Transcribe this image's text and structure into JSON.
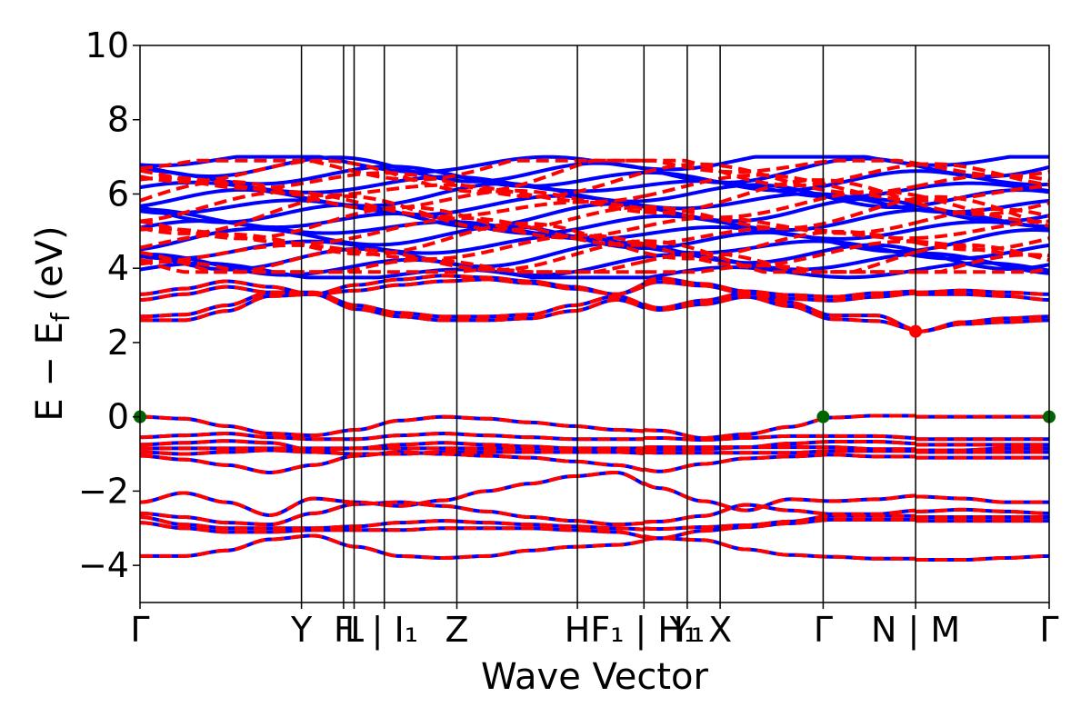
{
  "chart_data": {
    "type": "line",
    "title": "",
    "xlabel": "Wave Vector",
    "ylabel": "E − E_f (eV)",
    "ylabel_main": "E − E",
    "ylabel_sub": "f",
    "ylabel_unit": " (eV)",
    "ylim": [
      -5,
      10
    ],
    "yticks": [
      10,
      8,
      6,
      4,
      2,
      0,
      -2,
      -4
    ],
    "ytick_labels": [
      "10",
      "8",
      "6",
      "4",
      "2",
      "0",
      "−2",
      "−4"
    ],
    "xlim": [
      0,
      100
    ],
    "kpoints": [
      {
        "x": 0.0,
        "label": "Γ",
        "gap_after": false
      },
      {
        "x": 17.76,
        "label": "Y",
        "gap_after": false
      },
      {
        "x": 22.39,
        "label": "F",
        "gap_after": false
      },
      {
        "x": 23.55,
        "label": "L",
        "gap_after": false
      },
      {
        "x": 26.87,
        "label": "I | I₁",
        "gap_after": false
      },
      {
        "x": 34.85,
        "label": "Z",
        "gap_after": false
      },
      {
        "x": 48.11,
        "label": "H",
        "gap_after": false
      },
      {
        "x": 55.43,
        "label": "F₁ | H₁",
        "gap_after": true
      },
      {
        "x": 60.19,
        "label": "Y₁",
        "gap_after": false
      },
      {
        "x": 63.81,
        "label": "X",
        "gap_after": false
      },
      {
        "x": 75.14,
        "label": "Γ",
        "gap_after": false
      },
      {
        "x": 85.31,
        "label": "N | M",
        "gap_after": true
      },
      {
        "x": 100.0,
        "label": "Γ",
        "gap_after": false
      }
    ],
    "series": [
      {
        "color": "#0000ff",
        "dash": "solid"
      },
      {
        "color": "#ff0000",
        "dash": "dashed"
      }
    ],
    "valence_bands": [
      [
        0.0,
        -0.05,
        -0.25,
        -0.45,
        -0.5,
        -0.35,
        -0.1,
        0.0,
        -0.05,
        -0.15,
        -0.25,
        -0.35,
        -0.4,
        -0.6,
        -0.5,
        -0.3,
        -0.05,
        0.0,
        0.0,
        0.0,
        0.0,
        0.0
      ],
      [
        -0.55,
        -0.5,
        -0.45,
        -0.55,
        -0.6,
        -0.6,
        -0.5,
        -0.45,
        -0.5,
        -0.55,
        -0.6,
        -0.6,
        -0.6,
        -0.65,
        -0.6,
        -0.55,
        -0.55,
        -0.55,
        -0.6,
        -0.6,
        -0.6,
        -0.6
      ],
      [
        -0.75,
        -0.7,
        -0.65,
        -0.7,
        -0.9,
        -0.85,
        -0.75,
        -0.7,
        -0.75,
        -0.8,
        -0.85,
        -0.9,
        -0.9,
        -0.9,
        -0.85,
        -0.75,
        -0.7,
        -0.7,
        -0.75,
        -0.75,
        -0.75,
        -0.75
      ],
      [
        -0.85,
        -0.85,
        -0.85,
        -0.85,
        -0.85,
        -0.85,
        -0.85,
        -0.85,
        -0.85,
        -0.85,
        -0.85,
        -0.85,
        -0.85,
        -0.85,
        -0.85,
        -0.85,
        -0.85,
        -0.9,
        -0.9,
        -0.9,
        -0.85,
        -0.85
      ],
      [
        -0.95,
        -1.0,
        -0.95,
        -0.9,
        -0.95,
        -1.0,
        -1.0,
        -0.95,
        -0.95,
        -0.95,
        -0.95,
        -0.95,
        -1.0,
        -1.0,
        -1.0,
        -1.0,
        -0.95,
        -0.95,
        -0.95,
        -0.95,
        -0.95,
        -0.95
      ],
      [
        -1.05,
        -1.15,
        -1.3,
        -1.5,
        -1.3,
        -1.05,
        -0.95,
        -1.0,
        -1.05,
        -1.1,
        -1.2,
        -1.3,
        -1.5,
        -1.3,
        -1.15,
        -1.1,
        -1.05,
        -1.1,
        -1.1,
        -1.1,
        -1.1,
        -1.1
      ],
      [
        -2.3,
        -2.05,
        -2.3,
        -2.65,
        -2.2,
        -2.3,
        -2.4,
        -2.25,
        -2.0,
        -1.8,
        -1.6,
        -1.5,
        -1.95,
        -2.3,
        -2.55,
        -2.25,
        -2.3,
        -2.25,
        -2.15,
        -2.2,
        -2.3,
        -2.3
      ],
      [
        -2.6,
        -2.7,
        -2.85,
        -2.9,
        -2.6,
        -2.35,
        -2.3,
        -2.4,
        -2.55,
        -2.7,
        -2.8,
        -2.9,
        -2.85,
        -2.7,
        -2.4,
        -2.55,
        -2.65,
        -2.65,
        -2.55,
        -2.5,
        -2.55,
        -2.6
      ],
      [
        -2.7,
        -2.9,
        -3.0,
        -3.0,
        -3.0,
        -2.95,
        -2.85,
        -2.8,
        -2.85,
        -2.9,
        -2.95,
        -3.0,
        -3.05,
        -3.0,
        -2.95,
        -2.85,
        -2.7,
        -2.7,
        -2.7,
        -2.7,
        -2.7,
        -2.7
      ],
      [
        -2.85,
        -3.0,
        -3.1,
        -3.1,
        -3.05,
        -3.05,
        -3.05,
        -3.0,
        -3.0,
        -3.0,
        -3.05,
        -3.1,
        -3.3,
        -3.1,
        -3.0,
        -2.9,
        -2.8,
        -2.8,
        -2.8,
        -2.8,
        -2.8,
        -2.8
      ],
      [
        -3.75,
        -3.75,
        -3.6,
        -3.3,
        -3.2,
        -3.5,
        -3.75,
        -3.8,
        -3.75,
        -3.6,
        -3.5,
        -3.45,
        -3.3,
        -3.35,
        -3.6,
        -3.75,
        -3.8,
        -3.85,
        -3.85,
        -3.85,
        -3.8,
        -3.75
      ]
    ],
    "conduction_bands": [
      [
        2.6,
        2.6,
        2.85,
        3.25,
        3.3,
        2.9,
        2.7,
        2.6,
        2.6,
        2.65,
        2.85,
        3.15,
        2.85,
        3.0,
        3.2,
        2.95,
        2.6,
        2.55,
        2.3,
        2.5,
        2.55,
        2.6
      ],
      [
        2.7,
        2.75,
        3.0,
        3.35,
        3.35,
        3.0,
        2.8,
        2.7,
        2.7,
        2.75,
        3.0,
        3.25,
        2.9,
        3.1,
        3.3,
        3.05,
        2.7,
        2.7,
        2.3,
        2.55,
        2.65,
        2.7
      ],
      [
        3.15,
        3.3,
        3.5,
        3.35,
        3.3,
        3.4,
        3.55,
        3.65,
        3.7,
        3.6,
        3.45,
        3.3,
        3.6,
        3.5,
        3.3,
        3.15,
        3.1,
        3.2,
        3.3,
        3.3,
        3.25,
        3.15
      ],
      [
        3.3,
        3.45,
        3.65,
        3.5,
        3.3,
        3.55,
        3.7,
        3.8,
        3.75,
        3.65,
        3.5,
        3.3,
        3.7,
        3.55,
        3.35,
        3.25,
        3.2,
        3.3,
        3.35,
        3.4,
        3.35,
        3.3
      ]
    ],
    "upper_manifold": {
      "y_min": 3.75,
      "y_max": 7.0,
      "bands": 14
    },
    "markers": [
      {
        "x": 0.0,
        "y": 0.0,
        "color": "#006400"
      },
      {
        "x": 75.14,
        "y": 0.0,
        "color": "#006400"
      },
      {
        "x": 100.0,
        "y": 0.0,
        "color": "#006400"
      },
      {
        "x": 85.31,
        "y": 2.3,
        "color": "#ff0000"
      }
    ]
  }
}
